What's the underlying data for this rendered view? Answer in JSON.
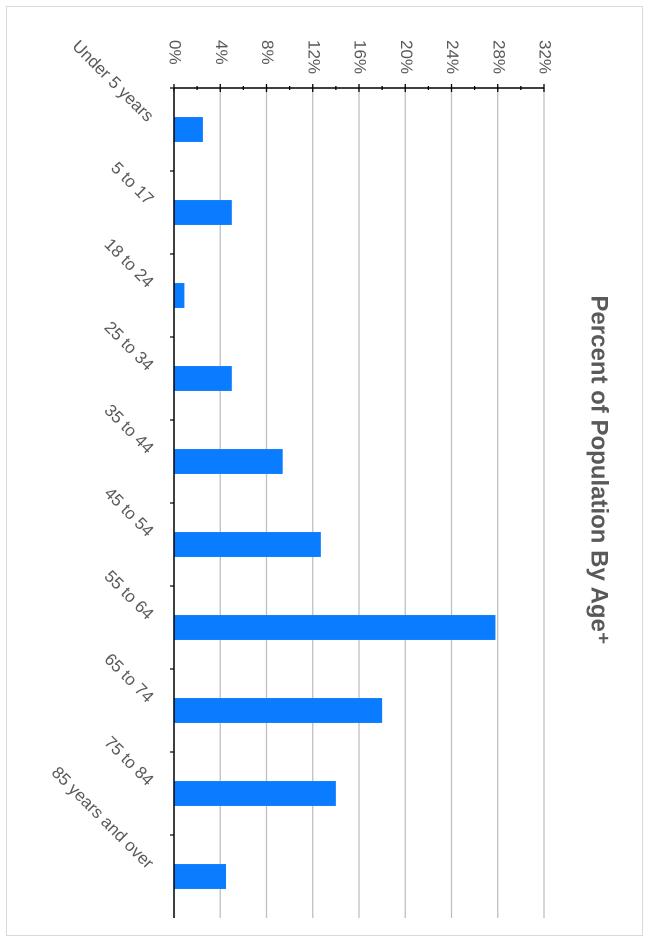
{
  "chart_data": {
    "type": "bar",
    "orientation": "horizontal",
    "title": "Percent of Population By Age⁺",
    "categories": [
      "Under 5 years",
      "5 to 17",
      "18 to 24",
      "25 to 34",
      "35 to 44",
      "45 to 54",
      "55 to 64",
      "65 to 74",
      "75 to 84",
      "85 years and over"
    ],
    "values": [
      2.5,
      5.0,
      0.9,
      5.0,
      9.4,
      12.7,
      27.8,
      18.0,
      14.0,
      4.5
    ],
    "value_unit": "%",
    "xlim": [
      0,
      32
    ],
    "ticks": [
      0,
      4,
      8,
      12,
      16,
      20,
      24,
      28,
      32
    ],
    "tick_labels": [
      "0%",
      "4%",
      "8%",
      "12%",
      "16%",
      "20%",
      "24%",
      "28%",
      "32%"
    ],
    "grid": true,
    "bar_color": "#0a7cff",
    "grid_color": "#bfbfbf",
    "text_color": "#595959"
  }
}
